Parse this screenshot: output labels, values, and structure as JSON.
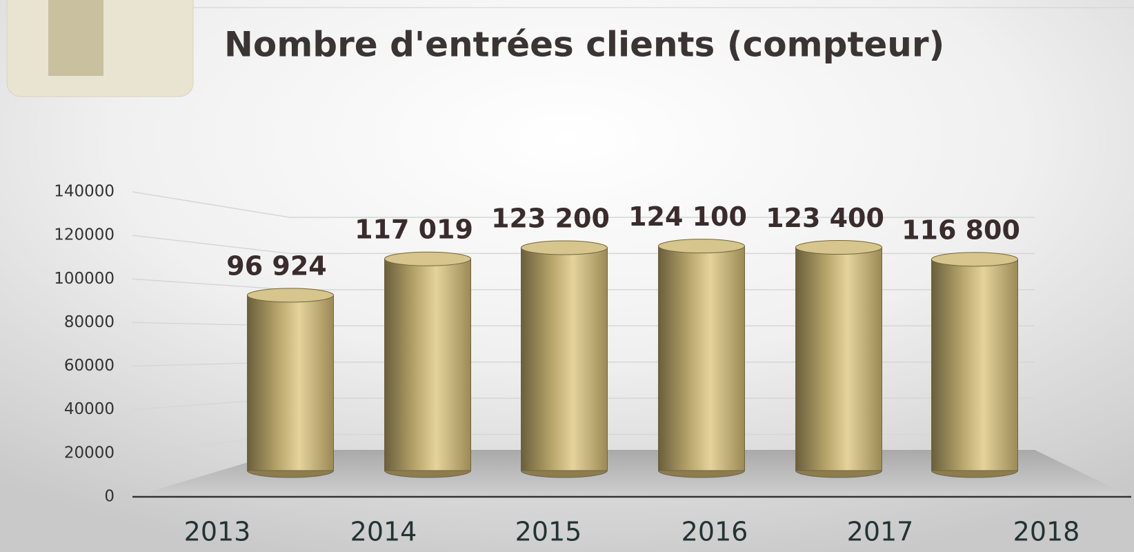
{
  "chart_data": {
    "type": "bar3d",
    "title": "Nombre d'entrées clients (compteur)",
    "categories": [
      "2013",
      "2014",
      "2015",
      "2016",
      "2017",
      "2018"
    ],
    "values": [
      96924,
      117019,
      123200,
      124100,
      123400,
      116800
    ],
    "value_labels": [
      "96 924",
      "117 019",
      "123 200",
      "124 100",
      "123 400",
      "116 800"
    ],
    "color": "#c8b57a",
    "ylim": [
      0,
      140000
    ],
    "yticks": [
      0,
      20000,
      40000,
      60000,
      80000,
      100000,
      120000,
      140000
    ],
    "grid": true
  }
}
